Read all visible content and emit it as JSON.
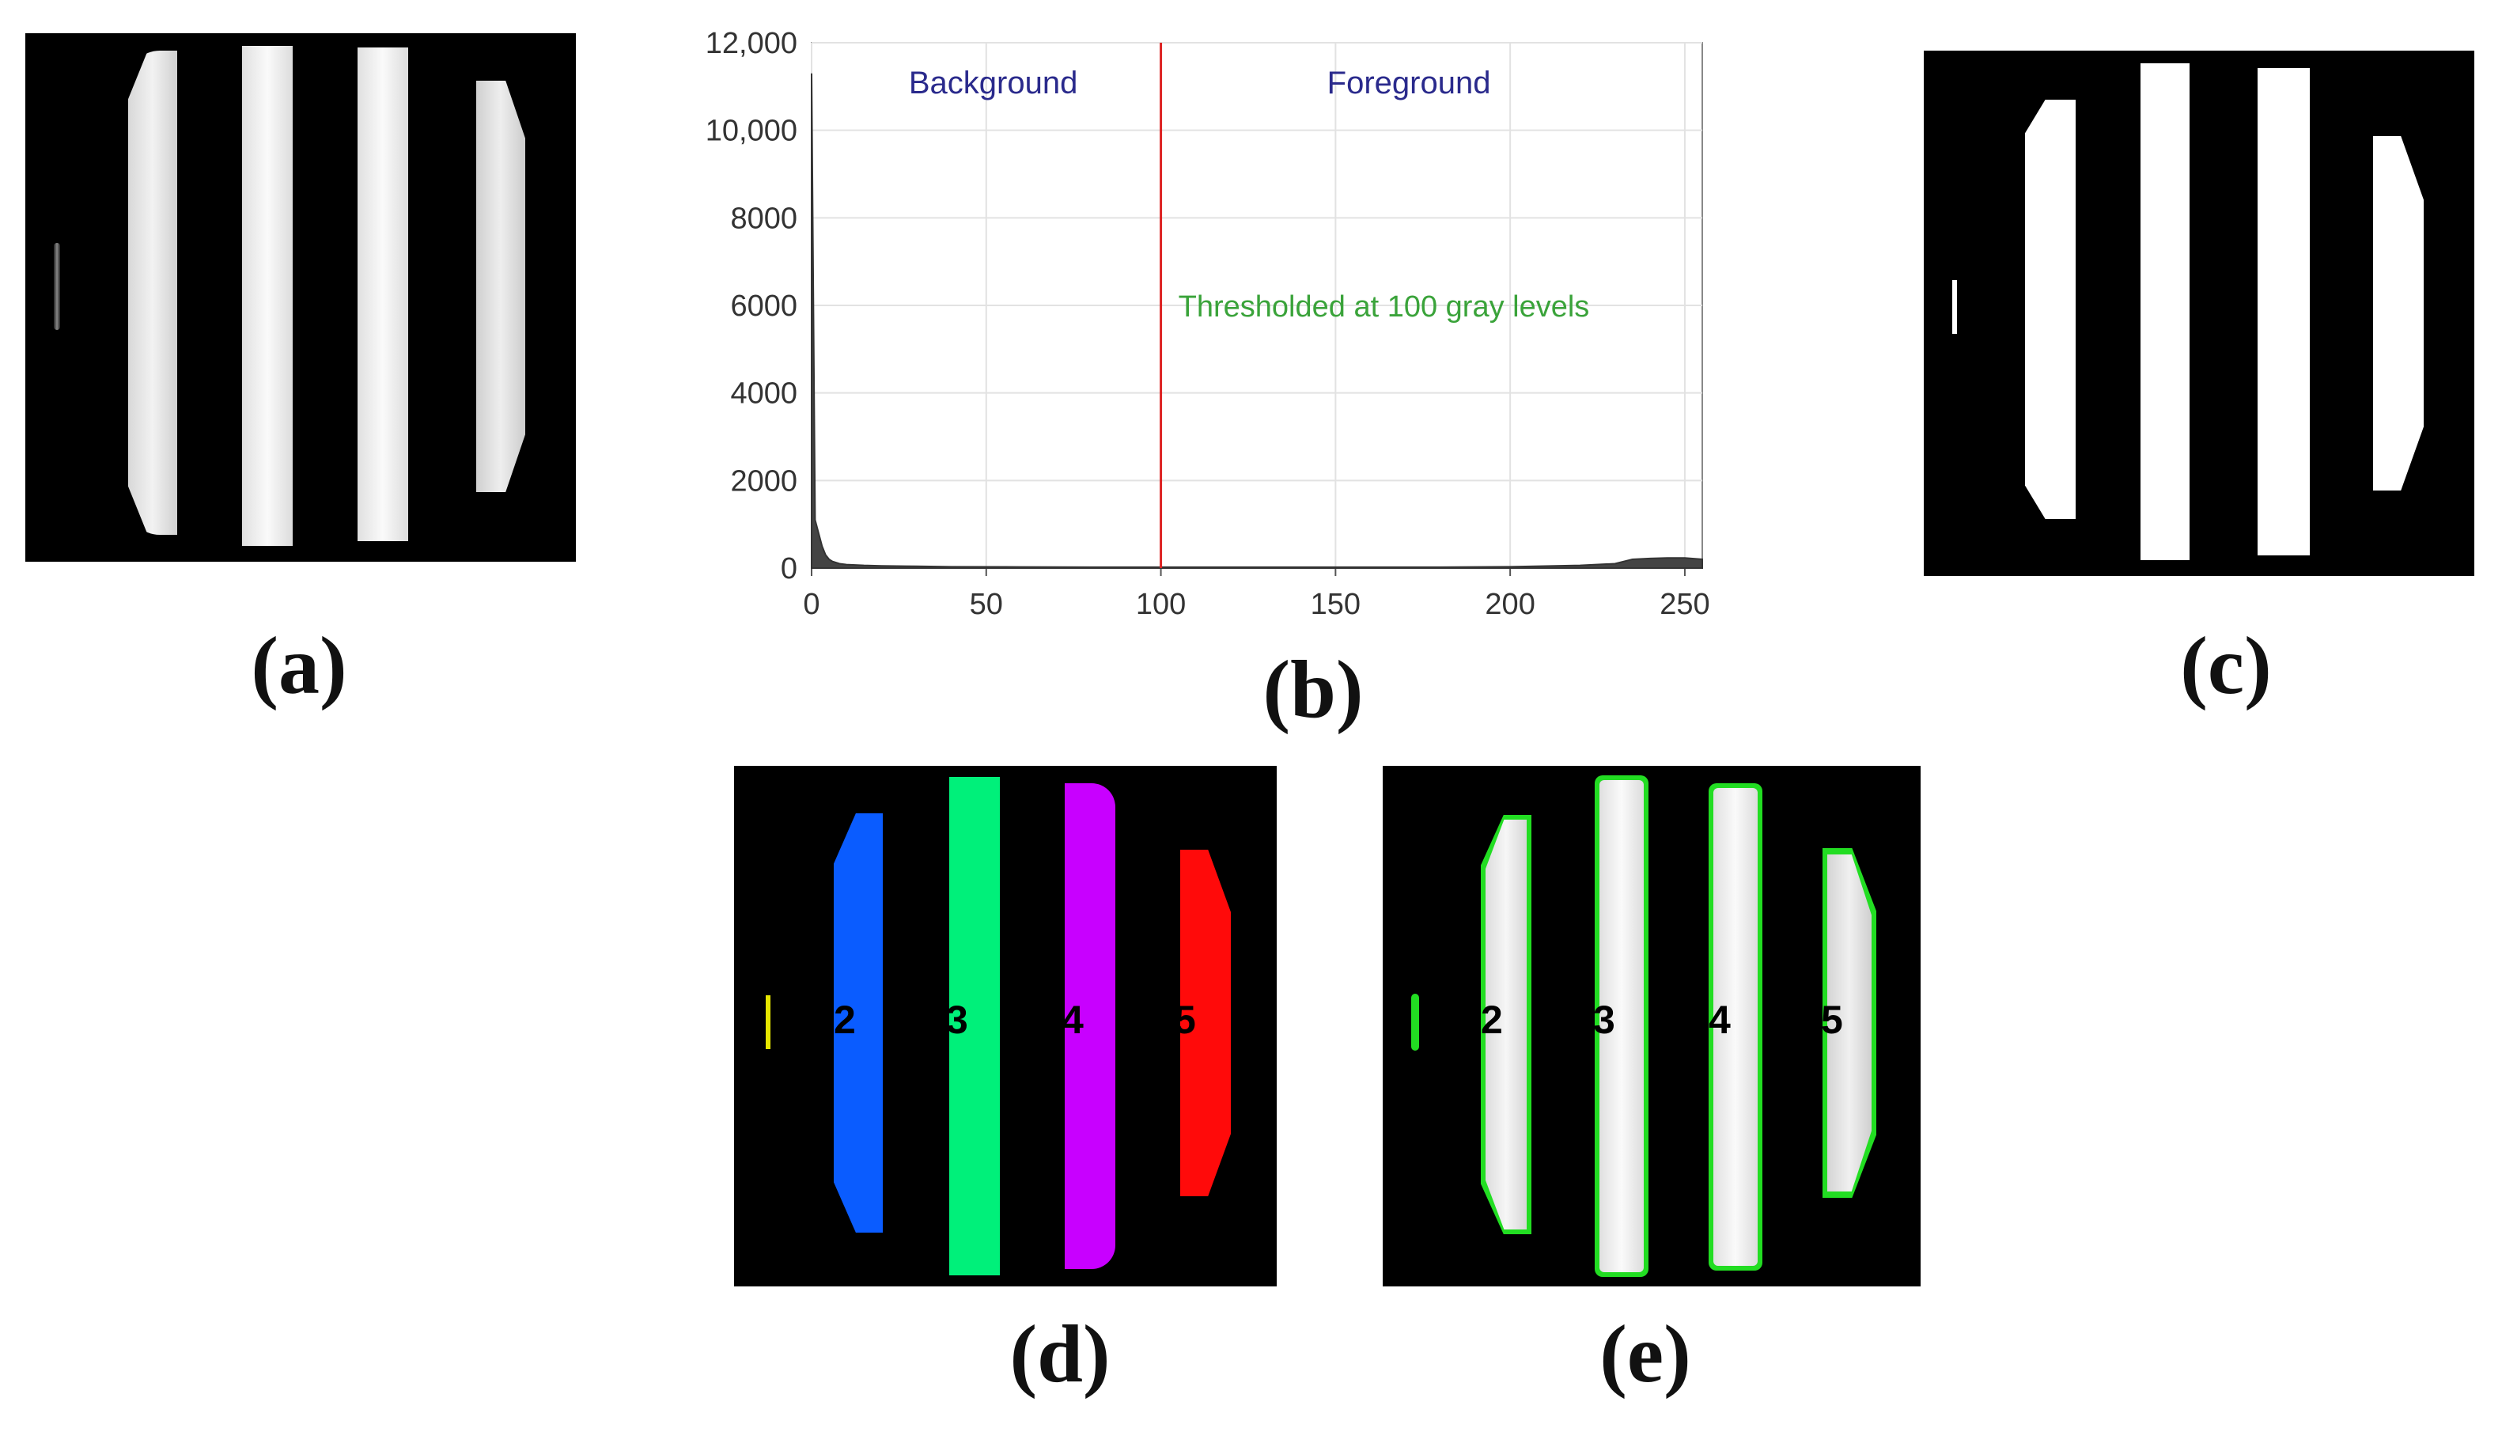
{
  "captions": {
    "a": "(a)",
    "b": "(b)",
    "c": "(c)",
    "d": "(d)",
    "e": "(e)"
  },
  "region_labels": [
    "2",
    "3",
    "4",
    "5"
  ],
  "region_colors": {
    "1": "#e6e600",
    "2": "#0a5cff",
    "3": "#00f07a",
    "4": "#c800ff",
    "5": "#ff0a0a",
    "outline": "#22dd22"
  },
  "chart_data": {
    "type": "bar",
    "x_ticks": [
      "0",
      "50",
      "100",
      "150",
      "200",
      "250"
    ],
    "y_ticks": [
      "0",
      "2000",
      "4000",
      "6000",
      "8000",
      "10,000",
      "12,000"
    ],
    "xlim": [
      0,
      255
    ],
    "ylim": [
      0,
      12000
    ],
    "grid": true,
    "threshold": 100,
    "threshold_color": "#dd2222",
    "background_label": "Background",
    "foreground_label": "Foreground",
    "annotation": "Thresholded at 100 gray levels",
    "histogram": {
      "x": [
        0,
        1,
        2,
        3,
        4,
        5,
        6,
        8,
        10,
        15,
        20,
        30,
        40,
        60,
        80,
        100,
        120,
        150,
        180,
        200,
        220,
        230,
        235,
        240,
        245,
        250,
        255
      ],
      "counts": [
        11300,
        1100,
        800,
        500,
        300,
        200,
        150,
        100,
        80,
        60,
        50,
        40,
        30,
        25,
        20,
        20,
        20,
        20,
        20,
        30,
        60,
        100,
        200,
        220,
        230,
        230,
        200
      ]
    }
  }
}
